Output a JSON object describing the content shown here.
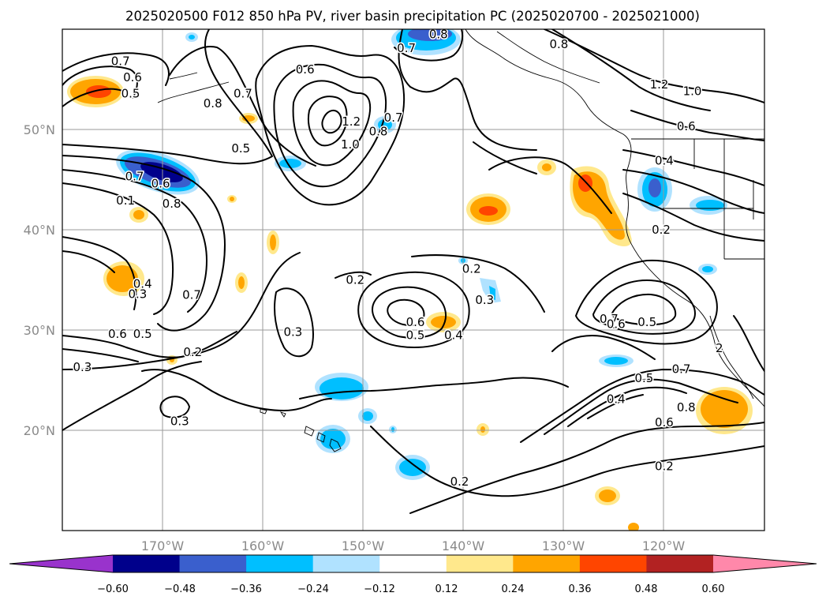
{
  "title": "2025020500 F012 850 hPa PV, river basin precipitation PC (2025020700 - 2025021000)",
  "lon_labels": [
    "170°W",
    "160°W",
    "150°W",
    "140°W",
    "130°W",
    "120°W"
  ],
  "lat_labels": [
    "50°N",
    "40°N",
    "30°N",
    "20°N"
  ],
  "colorbar": {
    "ticks": [
      "−0.60",
      "−0.48",
      "−0.36",
      "−0.24",
      "−0.12",
      "0.12",
      "0.24",
      "0.36",
      "0.48",
      "0.60"
    ],
    "colors": [
      "#9933cc",
      "#00008b",
      "#3a5fcd",
      "#00bfff",
      "#b0e2ff",
      "#ffffff",
      "#ffe88c",
      "#ffa500",
      "#ff4500",
      "#b22222",
      "#ff88aa"
    ]
  },
  "contour_labels": [
    {
      "text": "0.7",
      "lon": -174.2,
      "lat": 56.8
    },
    {
      "text": "0.6",
      "lon": -173.0,
      "lat": 55.2
    },
    {
      "text": "0.5",
      "lon": -173.2,
      "lat": 53.6
    },
    {
      "text": "0.8",
      "lon": -165.0,
      "lat": 52.6
    },
    {
      "text": "0.7",
      "lon": -162.0,
      "lat": 53.6
    },
    {
      "text": "0.6",
      "lon": -155.8,
      "lat": 56.0
    },
    {
      "text": "0.8",
      "lon": -142.5,
      "lat": 59.5
    },
    {
      "text": "0.7",
      "lon": -145.7,
      "lat": 58.1
    },
    {
      "text": "0.8",
      "lon": -130.5,
      "lat": 58.5
    },
    {
      "text": "1.2",
      "lon": -151.2,
      "lat": 50.8
    },
    {
      "text": "1.0",
      "lon": -151.3,
      "lat": 48.5
    },
    {
      "text": "0.8",
      "lon": -148.5,
      "lat": 49.8
    },
    {
      "text": "0.7",
      "lon": -147.0,
      "lat": 51.2
    },
    {
      "text": "1.2",
      "lon": -120.5,
      "lat": 54.5
    },
    {
      "text": "1.0",
      "lon": -117.2,
      "lat": 53.8
    },
    {
      "text": "0.6",
      "lon": -117.8,
      "lat": 50.3
    },
    {
      "text": "0.4",
      "lon": -120.0,
      "lat": 46.9
    },
    {
      "text": "0.5",
      "lon": -162.2,
      "lat": 48.1
    },
    {
      "text": "0.7",
      "lon": -172.8,
      "lat": 45.3
    },
    {
      "text": "0.6",
      "lon": -170.2,
      "lat": 44.6
    },
    {
      "text": "0.8",
      "lon": -169.1,
      "lat": 42.6
    },
    {
      "text": "0.1",
      "lon": -173.7,
      "lat": 42.9
    },
    {
      "text": "0.2",
      "lon": -120.3,
      "lat": 40.0
    },
    {
      "text": "0.2",
      "lon": -139.2,
      "lat": 36.1
    },
    {
      "text": "0.2",
      "lon": -150.8,
      "lat": 35.0
    },
    {
      "text": "0.3",
      "lon": -137.9,
      "lat": 33.0
    },
    {
      "text": "0.4",
      "lon": -172.0,
      "lat": 34.6
    },
    {
      "text": "0.3",
      "lon": -172.5,
      "lat": 33.6
    },
    {
      "text": "0.7",
      "lon": -167.1,
      "lat": 33.5
    },
    {
      "text": "0.6",
      "lon": -174.5,
      "lat": 29.6
    },
    {
      "text": "0.5",
      "lon": -172.0,
      "lat": 29.6
    },
    {
      "text": "0.3",
      "lon": -178.0,
      "lat": 26.3
    },
    {
      "text": "0.2",
      "lon": -167.0,
      "lat": 27.8
    },
    {
      "text": "0.3",
      "lon": -157.0,
      "lat": 29.8
    },
    {
      "text": "0.6",
      "lon": -144.8,
      "lat": 30.8
    },
    {
      "text": "0.5",
      "lon": -144.8,
      "lat": 29.5
    },
    {
      "text": "0.4",
      "lon": -141.0,
      "lat": 29.5
    },
    {
      "text": "0.7",
      "lon": -125.5,
      "lat": 31.1
    },
    {
      "text": "0.6",
      "lon": -124.8,
      "lat": 30.6
    },
    {
      "text": "0.5",
      "lon": -121.7,
      "lat": 30.8
    },
    {
      "text": "0.5",
      "lon": -122.0,
      "lat": 25.2
    },
    {
      "text": "0.4",
      "lon": -124.8,
      "lat": 23.1
    },
    {
      "text": "0.7",
      "lon": -118.3,
      "lat": 26.1
    },
    {
      "text": "0.8",
      "lon": -117.8,
      "lat": 22.3
    },
    {
      "text": "0.6",
      "lon": -120.0,
      "lat": 20.8
    },
    {
      "text": "0.2",
      "lon": -120.0,
      "lat": 16.4
    },
    {
      "text": "0.2",
      "lon": -140.4,
      "lat": 14.9
    },
    {
      "text": "0.3",
      "lon": -168.3,
      "lat": 20.9
    },
    {
      "text": "2",
      "lon": -114.5,
      "lat": 28.2
    }
  ]
}
